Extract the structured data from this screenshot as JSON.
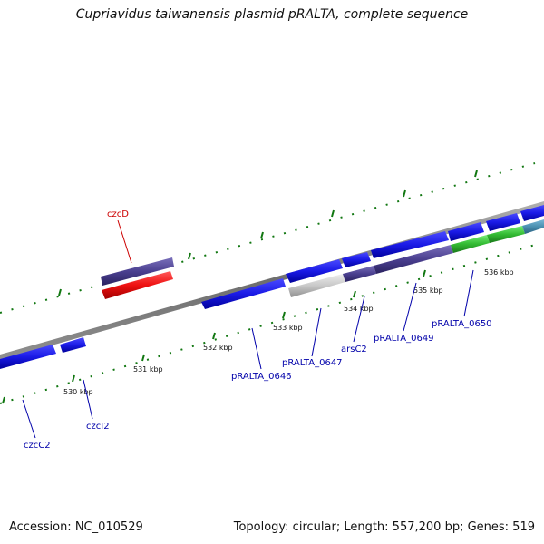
{
  "title": "Cupriavidus taiwanensis plasmid pRALTA, complete sequence",
  "footer": {
    "accession": "Accession: NC_010529",
    "topology": "Topology: circular; Length: 557,200 bp; Genes: 519"
  },
  "ticks": [
    "530 kbp",
    "531 kbp",
    "532 kbp",
    "533 kbp",
    "534 kbp",
    "535 kbp",
    "536 kbp"
  ],
  "genes": [
    {
      "name": "czcD",
      "color": "#cc0000"
    },
    {
      "name": "czcC2",
      "color": "#0000aa"
    },
    {
      "name": "czcI2",
      "color": "#0000aa"
    },
    {
      "name": "pRALTA_0646",
      "color": "#0000aa"
    },
    {
      "name": "pRALTA_0647",
      "color": "#0000aa"
    },
    {
      "name": "arsC2",
      "color": "#0000aa"
    },
    {
      "name": "pRALTA_0649",
      "color": "#0000aa"
    },
    {
      "name": "pRALTA_0650",
      "color": "#0000aa"
    }
  ],
  "colors": {
    "cds_blue": "#1a1ae6",
    "red": "#ee1111",
    "purple": "#4a3f8f",
    "green": "#33bb33",
    "gray": "#c8c8c8",
    "teal": "#4a8fb0",
    "backbone": "#7a7a7a",
    "tick": "#117711"
  }
}
